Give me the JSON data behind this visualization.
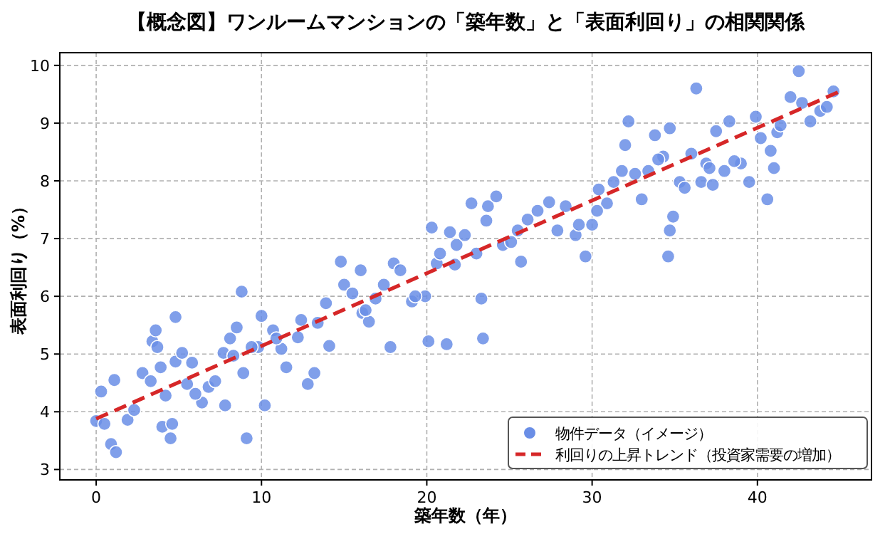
{
  "chart_data": {
    "type": "scatter",
    "title": "【概念図】ワンルームマンションの「築年数」と「表面利回り」の相関関係",
    "xlabel": "築年数（年）",
    "ylabel": "表面利回り（%）",
    "xlim": [
      -2.2,
      46.9
    ],
    "ylim": [
      2.82,
      10.22
    ],
    "xticks": [
      0,
      10,
      20,
      30,
      40
    ],
    "yticks": [
      3,
      4,
      5,
      6,
      7,
      8,
      9,
      10
    ],
    "grid": true,
    "legend": "bottom right",
    "series": [
      {
        "name": "物件データ（イメージ）",
        "marker": "circle",
        "color": "#6a8ee6",
        "x": [
          0.0,
          0.3,
          0.5,
          0.9,
          1.1,
          1.2,
          1.9,
          2.3,
          2.8,
          3.3,
          3.4,
          3.6,
          3.9,
          4.0,
          4.2,
          4.6,
          4.8,
          4.8,
          5.2,
          5.5,
          5.8,
          6.4,
          6.8,
          7.2,
          7.7,
          7.8,
          8.1,
          8.3,
          8.5,
          8.8,
          8.9,
          9.1,
          9.8,
          10.0,
          10.2,
          10.7,
          11.2,
          11.5,
          12.2,
          12.4,
          12.8,
          13.2,
          13.4,
          13.9,
          14.1,
          14.8,
          15.0,
          15.5,
          16.0,
          16.1,
          16.5,
          16.9,
          17.4,
          17.8,
          18.0,
          18.4,
          19.1,
          19.9,
          20.1,
          20.3,
          20.6,
          21.2,
          21.4,
          21.8,
          22.3,
          22.7,
          23.0,
          23.3,
          23.4,
          23.6,
          23.7,
          24.2,
          24.6,
          25.1,
          25.7,
          26.1,
          26.7,
          27.4,
          27.9,
          28.4,
          29.0,
          29.6,
          30.0,
          30.4,
          30.9,
          31.3,
          31.8,
          32.0,
          32.2,
          32.6,
          33.0,
          33.4,
          33.8,
          34.3,
          34.6,
          34.7,
          34.9,
          34.7,
          35.3,
          35.6,
          36.0,
          36.3,
          36.6,
          36.9,
          37.3,
          37.5,
          38.0,
          38.3,
          39.0,
          39.5,
          39.9,
          40.2,
          40.6,
          40.8,
          41.2,
          41.4,
          42.0,
          42.5,
          42.7,
          43.2,
          43.8,
          44.2,
          44.6,
          3.7,
          4.5,
          6.0,
          9.4,
          10.9,
          16.3,
          19.3,
          20.8,
          21.7,
          25.5,
          29.2,
          30.3,
          34.0,
          37.1,
          38.6,
          41.0
        ],
        "values": [
          3.84,
          4.35,
          3.79,
          3.44,
          4.55,
          3.3,
          3.86,
          4.03,
          4.67,
          4.53,
          5.22,
          5.41,
          4.77,
          3.74,
          4.28,
          3.79,
          5.64,
          4.87,
          5.02,
          4.48,
          4.85,
          4.16,
          4.43,
          4.53,
          5.02,
          4.11,
          5.27,
          4.97,
          5.46,
          6.08,
          4.67,
          3.54,
          5.12,
          5.66,
          4.11,
          5.41,
          5.09,
          4.77,
          5.29,
          5.59,
          4.48,
          4.67,
          5.54,
          5.88,
          5.14,
          6.6,
          6.2,
          6.05,
          6.45,
          5.71,
          5.56,
          5.96,
          6.2,
          5.12,
          6.57,
          6.45,
          5.91,
          6.0,
          5.22,
          7.19,
          6.57,
          5.17,
          7.11,
          6.89,
          7.06,
          7.61,
          6.74,
          5.96,
          5.27,
          7.31,
          7.56,
          7.73,
          6.89,
          6.94,
          6.6,
          7.33,
          7.48,
          7.63,
          7.14,
          7.56,
          7.06,
          6.69,
          7.24,
          7.85,
          7.61,
          7.98,
          8.17,
          8.62,
          9.03,
          8.12,
          7.68,
          8.17,
          8.79,
          8.42,
          6.69,
          7.14,
          7.38,
          8.91,
          7.98,
          7.88,
          8.47,
          9.6,
          7.98,
          8.3,
          7.93,
          8.86,
          8.17,
          9.03,
          8.3,
          7.98,
          9.11,
          8.74,
          7.68,
          8.52,
          8.84,
          8.96,
          9.45,
          9.9,
          9.35,
          9.03,
          9.21,
          9.28,
          9.55,
          5.12,
          3.54,
          4.31,
          5.12,
          5.27,
          5.76,
          6.0,
          6.74,
          6.55,
          7.14,
          7.24,
          7.48,
          8.37,
          8.22,
          8.34,
          8.22
        ]
      },
      {
        "name": "利回りの上昇トレンド（投資家需要の増加）",
        "type": "line",
        "color": "#d62728",
        "line_style": "dashed",
        "x": [
          0,
          45
        ],
        "values": [
          3.88,
          9.55
        ]
      }
    ]
  }
}
